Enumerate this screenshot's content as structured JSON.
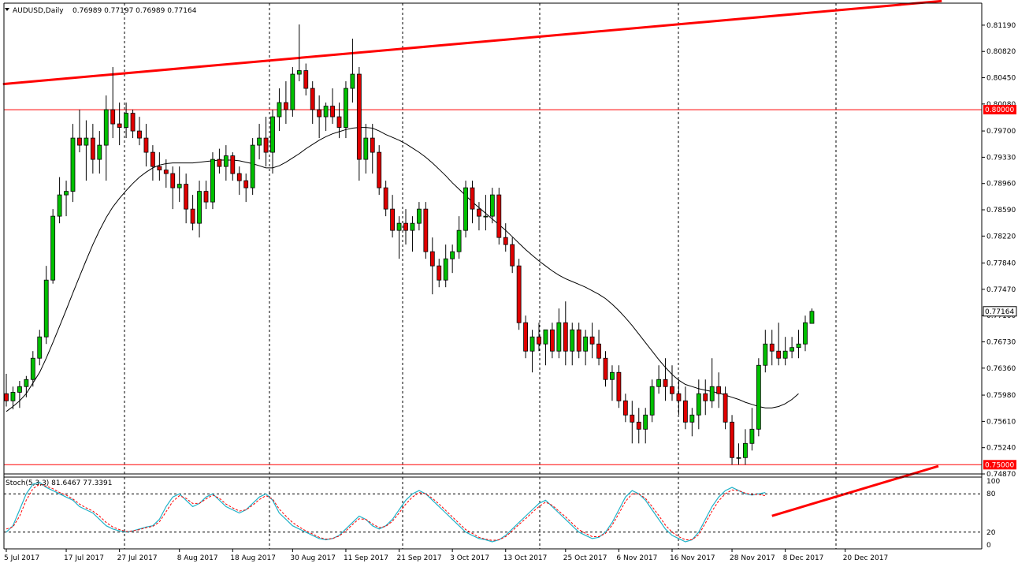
{
  "header": {
    "symbol": "AUDUSD,Daily",
    "ohlc": "0.76989 0.77197 0.76989 0.77164"
  },
  "stoch_header": {
    "label": "Stoch(5,3,3) 81.6467 77.3391"
  },
  "colors": {
    "bull": "#00c000",
    "bear": "#e00000",
    "line": "#ff0000",
    "ma": "#000000",
    "stoch_main": "#20b2c8",
    "stoch_signal": "#ff0000"
  },
  "chart_data": [
    {
      "type": "candlestick",
      "symbol": "AUDUSD",
      "timeframe": "Daily",
      "ylim": [
        0.7487,
        0.815
      ],
      "y_ticks": [
        "0.81190",
        "0.80820",
        "0.80450",
        "0.80080",
        "0.79700",
        "0.79330",
        "0.78960",
        "0.78590",
        "0.78220",
        "0.77840",
        "0.77470",
        "0.77100",
        "0.76730",
        "0.76360",
        "0.75980",
        "0.75610",
        "0.75240",
        "0.74870"
      ],
      "x_ticks": [
        {
          "label": "5 Jul 2017",
          "i": 0
        },
        {
          "label": "17 Jul 2017",
          "i": 9
        },
        {
          "label": "27 Jul 2017",
          "i": 17
        },
        {
          "label": "8 Aug 2017",
          "i": 26
        },
        {
          "label": "18 Aug 2017",
          "i": 34
        },
        {
          "label": "30 Aug 2017",
          "i": 43
        },
        {
          "label": "11 Sep 2017",
          "i": 51
        },
        {
          "label": "21 Sep 2017",
          "i": 59
        },
        {
          "label": "3 Oct 2017",
          "i": 67
        },
        {
          "label": "13 Oct 2017",
          "i": 75
        },
        {
          "label": "25 Oct 2017",
          "i": 84
        },
        {
          "label": "6 Nov 2017",
          "i": 92
        },
        {
          "label": "16 Nov 2017",
          "i": 100
        },
        {
          "label": "28 Nov 2017",
          "i": 109
        },
        {
          "label": "8 Dec 2017",
          "i": 117
        },
        {
          "label": "20 Dec 2017",
          "i": 126
        }
      ],
      "current_price_tag": "0.77164",
      "horizontal_levels": [
        {
          "price": 0.8,
          "tag": "0.80000"
        },
        {
          "price": 0.75,
          "tag": "0.75000"
        }
      ],
      "trendlines": [
        {
          "from": [
            -0.5,
            0.8036
          ],
          "to": [
            140.5,
            0.8153
          ]
        },
        {
          "from": [
            115,
            0.7428
          ],
          "to": [
            140,
            0.7498
          ]
        }
      ],
      "candles": [
        [
          0.76,
          0.7628,
          0.7582,
          0.759
        ],
        [
          0.759,
          0.761,
          0.7578,
          0.7602
        ],
        [
          0.7602,
          0.7618,
          0.758,
          0.761
        ],
        [
          0.761,
          0.7625,
          0.7595,
          0.762
        ],
        [
          0.762,
          0.766,
          0.761,
          0.765
        ],
        [
          0.765,
          0.769,
          0.764,
          0.768
        ],
        [
          0.768,
          0.778,
          0.767,
          0.776
        ],
        [
          0.776,
          0.786,
          0.7755,
          0.785
        ],
        [
          0.785,
          0.7905,
          0.784,
          0.788
        ],
        [
          0.788,
          0.79,
          0.785,
          0.7885
        ],
        [
          0.7885,
          0.798,
          0.787,
          0.796
        ],
        [
          0.796,
          0.8,
          0.794,
          0.795
        ],
        [
          0.795,
          0.7985,
          0.79,
          0.796
        ],
        [
          0.796,
          0.798,
          0.791,
          0.793
        ],
        [
          0.793,
          0.797,
          0.791,
          0.795
        ],
        [
          0.795,
          0.802,
          0.79,
          0.8
        ],
        [
          0.8,
          0.806,
          0.796,
          0.798
        ],
        [
          0.798,
          0.801,
          0.795,
          0.7975
        ],
        [
          0.7975,
          0.801,
          0.796,
          0.7995
        ],
        [
          0.7995,
          0.8,
          0.796,
          0.797
        ],
        [
          0.797,
          0.799,
          0.795,
          0.796
        ],
        [
          0.796,
          0.798,
          0.792,
          0.794
        ],
        [
          0.794,
          0.795,
          0.79,
          0.792
        ],
        [
          0.792,
          0.794,
          0.79,
          0.7915
        ],
        [
          0.7915,
          0.793,
          0.789,
          0.791
        ],
        [
          0.791,
          0.792,
          0.786,
          0.789
        ],
        [
          0.789,
          0.792,
          0.787,
          0.7895
        ],
        [
          0.7895,
          0.791,
          0.784,
          0.786
        ],
        [
          0.786,
          0.788,
          0.783,
          0.784
        ],
        [
          0.784,
          0.79,
          0.782,
          0.7885
        ],
        [
          0.7885,
          0.79,
          0.786,
          0.787
        ],
        [
          0.787,
          0.794,
          0.786,
          0.793
        ],
        [
          0.793,
          0.7945,
          0.791,
          0.792
        ],
        [
          0.792,
          0.795,
          0.79,
          0.7935
        ],
        [
          0.7935,
          0.794,
          0.79,
          0.791
        ],
        [
          0.791,
          0.792,
          0.788,
          0.79
        ],
        [
          0.79,
          0.791,
          0.787,
          0.789
        ],
        [
          0.789,
          0.796,
          0.788,
          0.795
        ],
        [
          0.795,
          0.798,
          0.793,
          0.796
        ],
        [
          0.796,
          0.799,
          0.792,
          0.794
        ],
        [
          0.794,
          0.8,
          0.791,
          0.799
        ],
        [
          0.799,
          0.803,
          0.797,
          0.801
        ],
        [
          0.801,
          0.804,
          0.798,
          0.8
        ],
        [
          0.8,
          0.806,
          0.799,
          0.805
        ],
        [
          0.805,
          0.812,
          0.804,
          0.8055
        ],
        [
          0.8055,
          0.8065,
          0.802,
          0.803
        ],
        [
          0.803,
          0.804,
          0.798,
          0.8
        ],
        [
          0.8,
          0.802,
          0.796,
          0.799
        ],
        [
          0.799,
          0.801,
          0.797,
          0.8005
        ],
        [
          0.8005,
          0.803,
          0.798,
          0.799
        ],
        [
          0.799,
          0.801,
          0.796,
          0.7975
        ],
        [
          0.7975,
          0.804,
          0.796,
          0.803
        ],
        [
          0.803,
          0.81,
          0.801,
          0.805
        ],
        [
          0.805,
          0.806,
          0.79,
          0.793
        ],
        [
          0.793,
          0.798,
          0.791,
          0.796
        ],
        [
          0.796,
          0.798,
          0.791,
          0.794
        ],
        [
          0.794,
          0.795,
          0.788,
          0.789
        ],
        [
          0.789,
          0.79,
          0.785,
          0.786
        ],
        [
          0.786,
          0.788,
          0.782,
          0.783
        ],
        [
          0.783,
          0.785,
          0.779,
          0.784
        ],
        [
          0.784,
          0.786,
          0.781,
          0.783
        ],
        [
          0.783,
          0.785,
          0.78,
          0.784
        ],
        [
          0.784,
          0.787,
          0.783,
          0.786
        ],
        [
          0.786,
          0.787,
          0.779,
          0.78
        ],
        [
          0.78,
          0.782,
          0.774,
          0.778
        ],
        [
          0.778,
          0.779,
          0.775,
          0.776
        ],
        [
          0.776,
          0.781,
          0.775,
          0.779
        ],
        [
          0.779,
          0.781,
          0.777,
          0.78
        ],
        [
          0.78,
          0.785,
          0.779,
          0.783
        ],
        [
          0.783,
          0.79,
          0.782,
          0.789
        ],
        [
          0.789,
          0.79,
          0.784,
          0.786
        ],
        [
          0.786,
          0.787,
          0.783,
          0.785
        ],
        [
          0.785,
          0.788,
          0.783,
          0.785
        ],
        [
          0.785,
          0.789,
          0.784,
          0.788
        ],
        [
          0.788,
          0.789,
          0.781,
          0.782
        ],
        [
          0.782,
          0.784,
          0.78,
          0.781
        ],
        [
          0.781,
          0.782,
          0.777,
          0.778
        ],
        [
          0.778,
          0.779,
          0.769,
          0.77
        ],
        [
          0.77,
          0.771,
          0.765,
          0.766
        ],
        [
          0.766,
          0.769,
          0.763,
          0.768
        ],
        [
          0.768,
          0.77,
          0.766,
          0.767
        ],
        [
          0.767,
          0.769,
          0.764,
          0.769
        ],
        [
          0.769,
          0.77,
          0.765,
          0.766
        ],
        [
          0.766,
          0.772,
          0.765,
          0.77
        ],
        [
          0.77,
          0.773,
          0.764,
          0.766
        ],
        [
          0.766,
          0.77,
          0.764,
          0.769
        ],
        [
          0.769,
          0.77,
          0.765,
          0.766
        ],
        [
          0.766,
          0.769,
          0.764,
          0.768
        ],
        [
          0.768,
          0.77,
          0.765,
          0.767
        ],
        [
          0.767,
          0.769,
          0.764,
          0.765
        ],
        [
          0.765,
          0.766,
          0.761,
          0.762
        ],
        [
          0.762,
          0.764,
          0.759,
          0.763
        ],
        [
          0.763,
          0.764,
          0.758,
          0.759
        ],
        [
          0.759,
          0.76,
          0.756,
          0.757
        ],
        [
          0.757,
          0.759,
          0.753,
          0.756
        ],
        [
          0.756,
          0.758,
          0.753,
          0.755
        ],
        [
          0.755,
          0.758,
          0.753,
          0.757
        ],
        [
          0.757,
          0.762,
          0.756,
          0.761
        ],
        [
          0.761,
          0.764,
          0.76,
          0.762
        ],
        [
          0.762,
          0.765,
          0.759,
          0.761
        ],
        [
          0.761,
          0.764,
          0.759,
          0.76
        ],
        [
          0.76,
          0.762,
          0.757,
          0.759
        ],
        [
          0.759,
          0.761,
          0.755,
          0.756
        ],
        [
          0.756,
          0.758,
          0.754,
          0.757
        ],
        [
          0.757,
          0.762,
          0.755,
          0.76
        ],
        [
          0.76,
          0.762,
          0.757,
          0.759
        ],
        [
          0.759,
          0.765,
          0.758,
          0.761
        ],
        [
          0.761,
          0.763,
          0.758,
          0.76
        ],
        [
          0.76,
          0.761,
          0.755,
          0.756
        ],
        [
          0.756,
          0.757,
          0.75,
          0.751
        ],
        [
          0.751,
          0.753,
          0.75,
          0.751
        ],
        [
          0.751,
          0.755,
          0.75,
          0.753
        ],
        [
          0.753,
          0.758,
          0.752,
          0.755
        ],
        [
          0.755,
          0.765,
          0.754,
          0.764
        ],
        [
          0.764,
          0.769,
          0.763,
          0.767
        ],
        [
          0.767,
          0.769,
          0.764,
          0.766
        ],
        [
          0.766,
          0.77,
          0.764,
          0.765
        ],
        [
          0.765,
          0.768,
          0.764,
          0.766
        ],
        [
          0.766,
          0.768,
          0.765,
          0.7665
        ],
        [
          0.7665,
          0.769,
          0.765,
          0.767
        ],
        [
          0.767,
          0.771,
          0.766,
          0.77
        ],
        [
          0.7699,
          0.772,
          0.7699,
          0.7716
        ]
      ],
      "ma": [
        0.7575,
        0.7582,
        0.759,
        0.76,
        0.7615,
        0.763,
        0.765,
        0.7672,
        0.7695,
        0.7718,
        0.7742,
        0.7765,
        0.7788,
        0.781,
        0.783,
        0.7848,
        0.7863,
        0.7875,
        0.7886,
        0.7896,
        0.7905,
        0.7912,
        0.7918,
        0.7922,
        0.7924,
        0.7925,
        0.7925,
        0.7925,
        0.7925,
        0.7926,
        0.7927,
        0.7928,
        0.7929,
        0.7929,
        0.7929,
        0.7928,
        0.7926,
        0.7924,
        0.7921,
        0.7918,
        0.7918,
        0.7921,
        0.7926,
        0.7932,
        0.7938,
        0.7945,
        0.7951,
        0.7957,
        0.7962,
        0.7966,
        0.7969,
        0.7972,
        0.7974,
        0.7975,
        0.7975,
        0.7974,
        0.797,
        0.7965,
        0.7961,
        0.7957,
        0.7952,
        0.7946,
        0.794,
        0.7933,
        0.7925,
        0.7916,
        0.7907,
        0.7897,
        0.7888,
        0.7879,
        0.787,
        0.7862,
        0.7854,
        0.7846,
        0.7838,
        0.783,
        0.7821,
        0.7812,
        0.7803,
        0.7795,
        0.7787,
        0.778,
        0.7773,
        0.7767,
        0.7762,
        0.7758,
        0.7754,
        0.775,
        0.7745,
        0.774,
        0.7734,
        0.7726,
        0.7717,
        0.7707,
        0.7696,
        0.7684,
        0.7672,
        0.766,
        0.7648,
        0.7637,
        0.7627,
        0.7619,
        0.7613,
        0.761,
        0.7607,
        0.7605,
        0.7603,
        0.7601,
        0.7598,
        0.7595,
        0.7592,
        0.7588,
        0.7585,
        0.7582,
        0.758,
        0.758,
        0.7582,
        0.7586,
        0.7592,
        0.76
      ]
    },
    {
      "type": "line",
      "name": "Stoch(5,3,3)",
      "ylim": [
        0,
        100
      ],
      "y_ticks": [
        "100",
        "80",
        "20",
        "0"
      ],
      "levels": [
        80,
        20
      ],
      "series": [
        {
          "values": [
            20,
            30,
            55,
            80,
            95,
            98,
            90,
            85,
            80,
            75,
            70,
            60,
            55,
            50,
            40,
            30,
            25,
            22,
            20,
            22,
            25,
            28,
            30,
            40,
            60,
            75,
            80,
            70,
            60,
            65,
            75,
            80,
            70,
            60,
            55,
            50,
            55,
            65,
            75,
            80,
            70,
            50,
            40,
            30,
            25,
            20,
            15,
            10,
            8,
            10,
            15,
            25,
            35,
            45,
            40,
            30,
            25,
            30,
            40,
            55,
            70,
            80,
            85,
            80,
            70,
            60,
            50,
            40,
            30,
            20,
            15,
            10,
            8,
            5,
            8,
            15,
            25,
            35,
            45,
            55,
            65,
            70,
            60,
            50,
            40,
            30,
            20,
            15,
            10,
            12,
            20,
            35,
            55,
            75,
            85,
            80,
            70,
            55,
            40,
            25,
            15,
            10,
            5,
            8,
            20,
            40,
            60,
            75,
            85,
            90,
            85,
            80,
            78,
            80,
            82
          ]
        },
        {
          "values": [
            25,
            28,
            45,
            70,
            88,
            95,
            92,
            88,
            82,
            78,
            72,
            64,
            58,
            53,
            45,
            35,
            28,
            24,
            21,
            22,
            24,
            27,
            29,
            36,
            52,
            68,
            77,
            73,
            65,
            65,
            72,
            78,
            73,
            64,
            58,
            53,
            55,
            62,
            71,
            77,
            72,
            56,
            45,
            35,
            28,
            22,
            17,
            12,
            9,
            10,
            14,
            22,
            32,
            41,
            40,
            33,
            27,
            29,
            37,
            50,
            64,
            75,
            82,
            80,
            73,
            64,
            54,
            44,
            34,
            24,
            18,
            12,
            9,
            7,
            8,
            13,
            22,
            32,
            41,
            51,
            60,
            67,
            62,
            53,
            44,
            34,
            24,
            18,
            13,
            13,
            18,
            31,
            49,
            68,
            80,
            80,
            73,
            60,
            46,
            31,
            20,
            13,
            8,
            8,
            16,
            34,
            53,
            69,
            80,
            86,
            85,
            81,
            79,
            79,
            77
          ]
        }
      ]
    }
  ]
}
